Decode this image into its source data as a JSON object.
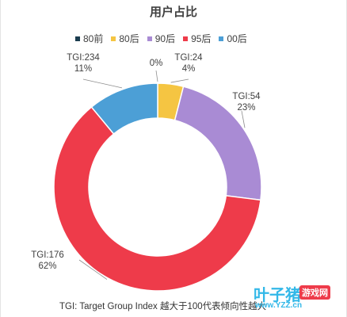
{
  "chart_data": {
    "type": "donut",
    "title": "用户占比",
    "categories": [
      "80前",
      "80后",
      "90后",
      "95后",
      "00后"
    ],
    "values": [
      0,
      4,
      23,
      62,
      11
    ],
    "value_labels": [
      "0%",
      "4%",
      "23%",
      "62%",
      "11%"
    ],
    "tgi_labels": [
      "",
      "TGI:24",
      "TGI:54",
      "TGI:176",
      "TGI:234"
    ],
    "colors": [
      "#1b3d4f",
      "#f5c542",
      "#a98bd4",
      "#ee3b4a",
      "#4c9fd6"
    ],
    "legend_position": "top",
    "footnote": "TGI: Target Group Index 越大于100代表倾向性越大"
  },
  "watermark": {
    "brand": "叶子猪",
    "badge": "游戏网",
    "url": "www.YZZ.cn"
  }
}
